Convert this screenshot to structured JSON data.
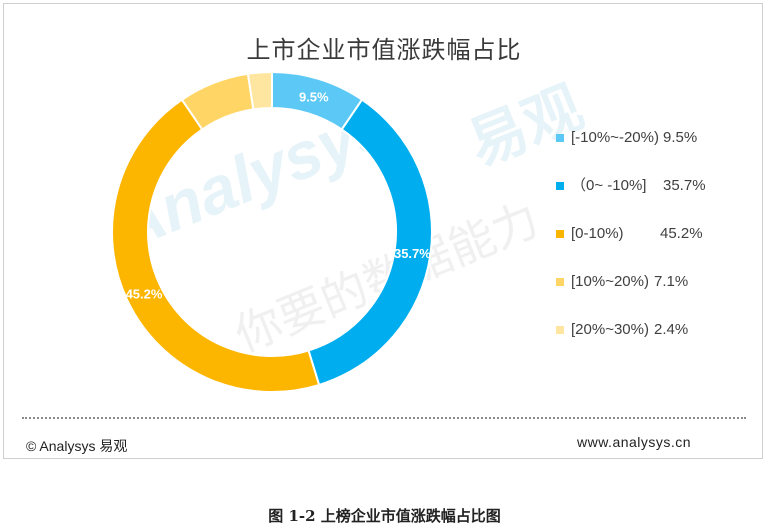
{
  "page": {
    "title": "上市企业市值涨跌幅占比",
    "watermark_en": "Analysys",
    "watermark_cn_1": "易观",
    "watermark_cn_2": "你要的数据能力",
    "footer_left": "© Analysys 易观",
    "footer_right": "www.analysys.cn",
    "caption": "图 1-2  上榜企业市值涨跌幅占比图"
  },
  "chart_data": {
    "type": "pie",
    "variant": "donut",
    "title": "上市企业市值涨跌幅占比",
    "legend_position": "right",
    "categories": [
      "[-10%~-20%)",
      "（0~ -10%]",
      "[0-10%)",
      "[10%~20%)",
      "[20%~30%)"
    ],
    "values": [
      9.5,
      35.7,
      45.2,
      7.1,
      2.4
    ],
    "labels": [
      "9.5%",
      "35.7%",
      "45.2%",
      "7.1%",
      "2.4%"
    ],
    "data_labels_shown": [
      "9.5%",
      "35.7%",
      "45.2%"
    ],
    "colors": [
      "#5BC8F5",
      "#00AEEF",
      "#FDB600",
      "#FFD666",
      "#FFE6A0"
    ]
  }
}
